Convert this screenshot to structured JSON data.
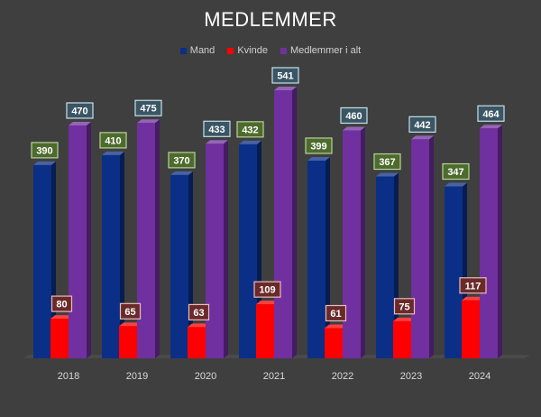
{
  "chart_data": {
    "type": "bar",
    "title": "MEDLEMMER",
    "categories": [
      "2018",
      "2019",
      "2020",
      "2021",
      "2022",
      "2023",
      "2024"
    ],
    "series": [
      {
        "name": "Mand",
        "values": [
          390,
          410,
          370,
          432,
          399,
          367,
          347
        ],
        "color": "#0b2f86",
        "label_bg": "#4e6b2e",
        "label_border": "#b8d39a"
      },
      {
        "name": "Kvinde",
        "values": [
          80,
          65,
          63,
          109,
          61,
          75,
          117
        ],
        "color": "#ff0000",
        "label_bg": "#6b2a2a",
        "label_border": "#e8bcbc"
      },
      {
        "name": "Medlemmer i alt",
        "values": [
          470,
          475,
          433,
          541,
          460,
          442,
          464
        ],
        "color": "#7030a0",
        "label_bg": "#3a5563",
        "label_border": "#c7e0ea"
      }
    ],
    "xlabel": "",
    "ylabel": "",
    "ylim": [
      0,
      541
    ],
    "grid": false,
    "legend_position": "top",
    "background": "#3f3f3f"
  }
}
